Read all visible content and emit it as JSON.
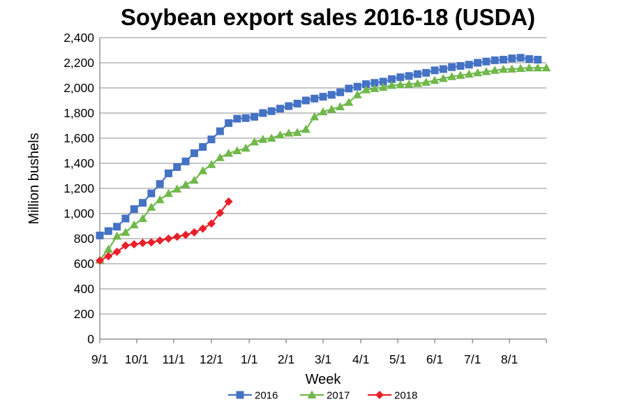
{
  "chart_data": {
    "type": "line",
    "title": "Soybean export sales 2016-18 (USDA)",
    "xlabel": "Week",
    "ylabel": "Million bushels",
    "ylim": [
      0,
      2400
    ],
    "yticks": [
      0,
      200,
      400,
      600,
      800,
      1000,
      1200,
      1400,
      1600,
      1800,
      2000,
      2200,
      2400
    ],
    "ytick_labels": [
      "0",
      "200",
      "400",
      "600",
      "800",
      "1,000",
      "1,200",
      "1,400",
      "1,600",
      "1,800",
      "2,000",
      "2,200",
      "2,400"
    ],
    "xlim": [
      0,
      52
    ],
    "xticks": [
      0,
      4.3,
      8.6,
      13,
      17.4,
      21.7,
      26,
      30.4,
      34.7,
      39,
      43.4,
      47.7
    ],
    "xtick_labels": [
      "9/1",
      "10/1",
      "11/1",
      "12/1",
      "1/1",
      "2/1",
      "3/1",
      "4/1",
      "5/1",
      "6/1",
      "7/1",
      "8/1"
    ],
    "grid": "horizontal",
    "legend": "bottom-center",
    "series": [
      {
        "name": "2016",
        "color": "#4472C4",
        "marker": "square",
        "x": [
          0,
          1,
          2,
          3,
          4,
          5,
          6,
          7,
          8,
          9,
          10,
          11,
          12,
          13,
          14,
          15,
          16,
          17,
          18,
          19,
          20,
          21,
          22,
          23,
          24,
          25,
          26,
          27,
          28,
          29,
          30,
          31,
          32,
          33,
          34,
          35,
          36,
          37,
          38,
          39,
          40,
          41,
          42,
          43,
          44,
          45,
          46,
          47,
          48,
          49,
          50,
          51
        ],
        "values": [
          825,
          860,
          895,
          960,
          1035,
          1085,
          1160,
          1235,
          1320,
          1370,
          1415,
          1480,
          1530,
          1590,
          1655,
          1720,
          1755,
          1760,
          1770,
          1800,
          1815,
          1835,
          1855,
          1875,
          1900,
          1915,
          1930,
          1945,
          1965,
          1995,
          2010,
          2030,
          2040,
          2050,
          2070,
          2085,
          2095,
          2110,
          2120,
          2140,
          2150,
          2165,
          2175,
          2185,
          2200,
          2210,
          2220,
          2225,
          2235,
          2240,
          2230,
          2225
        ]
      },
      {
        "name": "2017",
        "color": "#70B84A",
        "marker": "triangle",
        "x": [
          0,
          1,
          2,
          3,
          4,
          5,
          6,
          7,
          8,
          9,
          10,
          11,
          12,
          13,
          14,
          15,
          16,
          17,
          18,
          19,
          20,
          21,
          22,
          23,
          24,
          25,
          26,
          27,
          28,
          29,
          30,
          31,
          32,
          33,
          34,
          35,
          36,
          37,
          38,
          39,
          40,
          41,
          42,
          43,
          44,
          45,
          46,
          47,
          48,
          49,
          50,
          51,
          52
        ],
        "values": [
          630,
          715,
          820,
          850,
          910,
          960,
          1050,
          1110,
          1160,
          1195,
          1230,
          1265,
          1340,
          1390,
          1445,
          1480,
          1500,
          1520,
          1570,
          1590,
          1600,
          1625,
          1640,
          1645,
          1670,
          1770,
          1810,
          1830,
          1850,
          1885,
          1945,
          1985,
          1995,
          2005,
          2020,
          2025,
          2030,
          2035,
          2045,
          2060,
          2075,
          2090,
          2100,
          2110,
          2120,
          2130,
          2140,
          2148,
          2150,
          2155,
          2160,
          2160,
          2160
        ]
      },
      {
        "name": "2018",
        "color": "#E8202A",
        "marker": "diamond",
        "x": [
          0,
          1,
          2,
          3,
          4,
          5,
          6,
          7,
          8,
          9,
          10,
          11,
          12,
          13,
          14,
          15
        ],
        "values": [
          625,
          660,
          695,
          745,
          755,
          765,
          770,
          785,
          800,
          815,
          830,
          850,
          880,
          920,
          1005,
          1095
        ]
      }
    ]
  }
}
